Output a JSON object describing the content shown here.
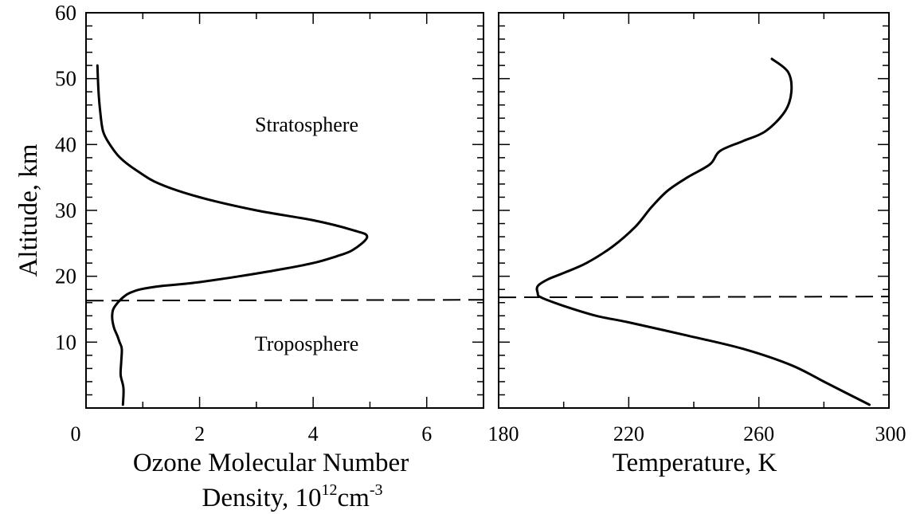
{
  "chart_data": [
    {
      "type": "line",
      "panel": "left",
      "xlabel_line1": "Ozone Molecular Number",
      "xlabel_line2_prefix": "Density, 10",
      "xlabel_line2_exp": "12",
      "xlabel_line2_unit": "cm",
      "xlabel_line2_unit_exp": "-3",
      "ylabel": "Altitude, km",
      "xlim": [
        0,
        7
      ],
      "ylim": [
        0,
        60
      ],
      "xticks": [
        0,
        2,
        4,
        6
      ],
      "yticks": [
        10,
        20,
        30,
        40,
        50,
        60
      ],
      "grid": false,
      "annotations": [
        "Stratosphere",
        "Troposphere"
      ],
      "tropopause_altitude": 16.3,
      "series": [
        {
          "x": [
            0.65,
            0.66,
            0.61,
            0.62,
            0.63,
            0.59,
            0.55,
            0.5,
            0.47,
            0.46,
            0.48,
            0.56,
            0.68,
            0.78,
            0.95,
            1.3,
            1.9,
            2.7,
            3.4,
            4.0,
            4.4,
            4.7,
            4.95,
            4.7,
            4.0,
            3.0,
            2.0,
            1.3,
            0.9,
            0.6,
            0.42,
            0.3,
            0.25,
            0.22,
            0.2
          ],
          "y": [
            0.5,
            3,
            5,
            7,
            9,
            10,
            11,
            12,
            13,
            14,
            15,
            16,
            17,
            17.5,
            18,
            18.5,
            19,
            20,
            21,
            22,
            23,
            24,
            26,
            27,
            28.5,
            30,
            32,
            34,
            36,
            38,
            40,
            42,
            45,
            48,
            52
          ]
        }
      ]
    },
    {
      "type": "line",
      "panel": "right",
      "xlabel": "Temperature, K",
      "xlim": [
        180,
        300
      ],
      "ylim": [
        0,
        60
      ],
      "xticks": [
        180,
        220,
        260,
        300
      ],
      "grid": false,
      "tropopause_altitude": 16.8,
      "series": [
        {
          "x": [
            294,
            288,
            280,
            270,
            255,
            238,
            220,
            210,
            200,
            193,
            192,
            192,
            195,
            200,
            207,
            215,
            222,
            227,
            232,
            238,
            245,
            248,
            255,
            262,
            268,
            270,
            269,
            264
          ],
          "y": [
            0.5,
            2,
            4,
            6.5,
            9,
            11,
            13,
            14,
            15.5,
            16.8,
            17.5,
            18.5,
            19.5,
            20.5,
            22,
            24.5,
            27.5,
            30.5,
            33,
            35,
            37,
            39,
            40.5,
            42,
            45,
            48,
            51,
            53
          ]
        }
      ]
    }
  ]
}
